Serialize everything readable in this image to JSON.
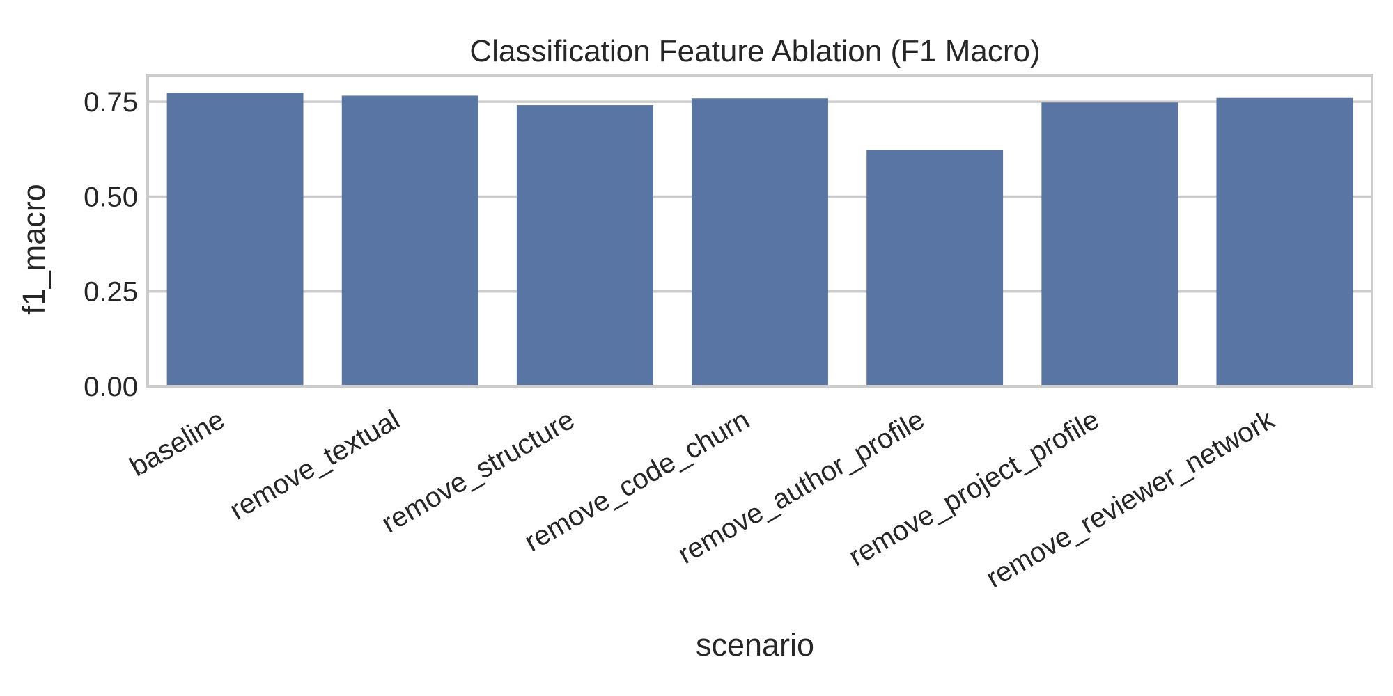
{
  "chart_data": {
    "type": "bar",
    "title": "Classification Feature Ablation (F1 Macro)",
    "xlabel": "scenario",
    "ylabel": "f1_macro",
    "categories": [
      "baseline",
      "remove_textual",
      "remove_structure",
      "remove_code_churn",
      "remove_author_profile",
      "remove_project_profile",
      "remove_reviewer_network"
    ],
    "values": [
      0.773,
      0.766,
      0.741,
      0.759,
      0.622,
      0.748,
      0.76
    ],
    "ylim": [
      0,
      0.82
    ],
    "yticks": [
      0.0,
      0.25,
      0.5,
      0.75
    ],
    "ytick_labels": [
      "0.00",
      "0.25",
      "0.50",
      "0.75"
    ],
    "grid": true,
    "bar_color": "#5975a4",
    "grid_color": "#cccccc"
  }
}
